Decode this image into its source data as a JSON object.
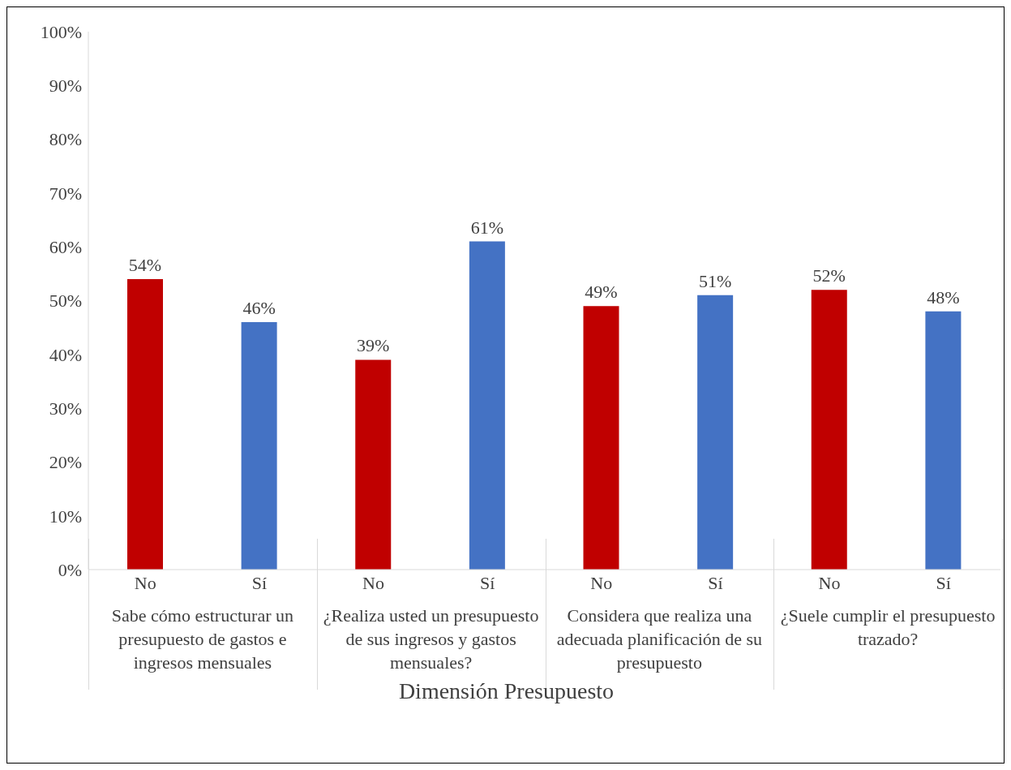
{
  "chart_data": {
    "type": "bar",
    "categories": [
      "No",
      "Sí",
      "No",
      "Sí",
      "No",
      "Sí",
      "No",
      "Sí"
    ],
    "values": [
      54,
      46,
      39,
      61,
      49,
      51,
      52,
      48
    ],
    "colors": [
      "#c00000",
      "#4472c4",
      "#c00000",
      "#4472c4",
      "#c00000",
      "#4472c4",
      "#c00000",
      "#4472c4"
    ],
    "value_labels": [
      "54%",
      "46%",
      "39%",
      "61%",
      "49%",
      "51%",
      "52%",
      "48%"
    ],
    "ylim": [
      0,
      100
    ],
    "yticks": [
      {
        "value": 0,
        "label": "0%"
      },
      {
        "value": 10,
        "label": "10%"
      },
      {
        "value": 20,
        "label": "20%"
      },
      {
        "value": 30,
        "label": "30%"
      },
      {
        "value": 40,
        "label": "40%"
      },
      {
        "value": 50,
        "label": "50%"
      },
      {
        "value": 60,
        "label": "60%"
      },
      {
        "value": 70,
        "label": "70%"
      },
      {
        "value": 80,
        "label": "80%"
      },
      {
        "value": 90,
        "label": "90%"
      },
      {
        "value": 100,
        "label": "100%"
      }
    ],
    "xlabel": "Dimensión Presupuesto",
    "annotations": [
      "Sabe cómo estructurar un presupuesto de gastos e ingresos mensuales",
      "¿Realiza usted un presupuesto de sus ingresos y gastos mensuales?",
      "Considera que realiza una adecuada planificación de su presupuesto",
      "¿Suele cumplir el presupuesto trazado?"
    ],
    "grid": false,
    "legend": false
  }
}
